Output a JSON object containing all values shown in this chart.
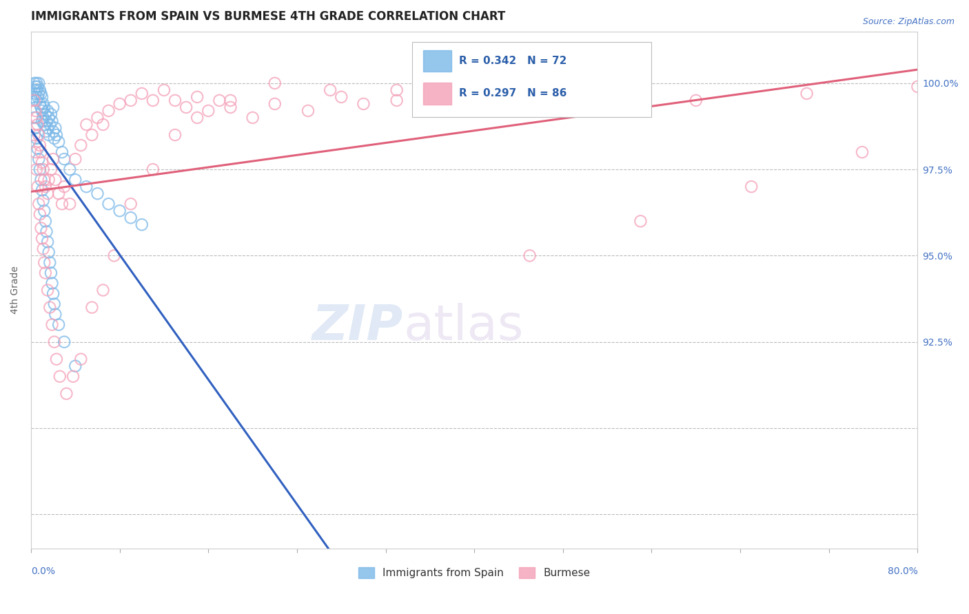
{
  "title": "IMMIGRANTS FROM SPAIN VS BURMESE 4TH GRADE CORRELATION CHART",
  "source_text": "Source: ZipAtlas.com",
  "ylabel": "4th Grade",
  "xlim": [
    0.0,
    80.0
  ],
  "ylim": [
    86.5,
    101.5
  ],
  "spain_color": "#7bb8e8",
  "burmese_color": "#f4a0b8",
  "spain_line_color": "#3060c0",
  "burmese_line_color": "#e0607a",
  "spain_R": 0.342,
  "spain_N": 72,
  "burmese_R": 0.297,
  "burmese_N": 86,
  "legend_R_color": "#2c5faa",
  "watermark_zip": "ZIP",
  "watermark_atlas": "atlas",
  "background_color": "#ffffff",
  "grid_color": "#bbbbbb",
  "right_ytick_vals": [
    92.5,
    95.0,
    97.5,
    100.0
  ],
  "right_ytick_labels": [
    "92.5%",
    "95.0%",
    "97.5%",
    "100.0%"
  ],
  "spain_scatter_x": [
    0.2,
    0.3,
    0.3,
    0.4,
    0.4,
    0.5,
    0.5,
    0.5,
    0.6,
    0.6,
    0.7,
    0.7,
    0.8,
    0.8,
    0.9,
    0.9,
    1.0,
    1.0,
    1.0,
    1.1,
    1.1,
    1.2,
    1.2,
    1.3,
    1.3,
    1.4,
    1.5,
    1.5,
    1.6,
    1.6,
    1.7,
    1.8,
    1.9,
    2.0,
    2.0,
    2.1,
    2.2,
    2.3,
    2.5,
    2.8,
    3.0,
    3.5,
    4.0,
    5.0,
    6.0,
    7.0,
    8.0,
    9.0,
    10.0,
    0.3,
    0.4,
    0.5,
    0.6,
    0.7,
    0.8,
    0.9,
    1.0,
    1.1,
    1.2,
    1.3,
    1.4,
    1.5,
    1.6,
    1.7,
    1.8,
    1.9,
    2.0,
    2.1,
    2.2,
    2.5,
    3.0,
    4.0
  ],
  "spain_scatter_y": [
    99.6,
    100.0,
    99.8,
    99.9,
    99.7,
    100.0,
    99.8,
    99.5,
    99.9,
    99.6,
    100.0,
    99.7,
    99.8,
    99.4,
    99.7,
    99.3,
    99.6,
    99.2,
    98.9,
    99.4,
    99.0,
    99.3,
    98.8,
    99.1,
    98.6,
    98.9,
    98.7,
    99.2,
    98.5,
    99.0,
    98.8,
    99.1,
    98.9,
    98.6,
    99.3,
    98.4,
    98.7,
    98.5,
    98.3,
    98.0,
    97.8,
    97.5,
    97.2,
    97.0,
    96.8,
    96.5,
    96.3,
    96.1,
    95.9,
    99.0,
    98.7,
    98.4,
    98.1,
    97.8,
    97.5,
    97.2,
    96.9,
    96.6,
    96.3,
    96.0,
    95.7,
    95.4,
    95.1,
    94.8,
    94.5,
    94.2,
    93.9,
    93.6,
    93.3,
    93.0,
    92.5,
    91.8
  ],
  "burmese_scatter_x": [
    0.3,
    0.4,
    0.5,
    0.6,
    0.7,
    0.8,
    0.9,
    1.0,
    1.1,
    1.2,
    1.3,
    1.5,
    1.6,
    1.8,
    2.0,
    2.2,
    2.5,
    2.8,
    3.0,
    3.5,
    4.0,
    4.5,
    5.0,
    5.5,
    6.0,
    6.5,
    7.0,
    8.0,
    9.0,
    10.0,
    11.0,
    12.0,
    13.0,
    14.0,
    15.0,
    16.0,
    17.0,
    18.0,
    20.0,
    22.0,
    25.0,
    28.0,
    30.0,
    33.0,
    36.0,
    40.0,
    0.3,
    0.4,
    0.5,
    0.6,
    0.7,
    0.8,
    0.9,
    1.0,
    1.1,
    1.2,
    1.3,
    1.5,
    1.7,
    1.9,
    2.1,
    2.3,
    2.6,
    3.2,
    3.8,
    4.5,
    5.5,
    6.5,
    7.5,
    9.0,
    11.0,
    13.0,
    15.0,
    18.0,
    22.0,
    27.0,
    33.0,
    40.0,
    50.0,
    60.0,
    70.0,
    80.0,
    45.0,
    55.0,
    65.0,
    75.0
  ],
  "burmese_scatter_y": [
    99.5,
    99.2,
    99.0,
    98.8,
    98.5,
    98.2,
    98.0,
    97.7,
    97.5,
    97.2,
    97.0,
    96.8,
    97.2,
    97.5,
    97.8,
    97.2,
    96.8,
    96.5,
    97.0,
    96.5,
    97.8,
    98.2,
    98.8,
    98.5,
    99.0,
    98.8,
    99.2,
    99.4,
    99.5,
    99.7,
    99.5,
    99.8,
    99.5,
    99.3,
    99.6,
    99.2,
    99.5,
    99.3,
    99.0,
    99.4,
    99.2,
    99.6,
    99.4,
    99.8,
    99.5,
    99.7,
    98.5,
    98.0,
    97.5,
    97.0,
    96.5,
    96.2,
    95.8,
    95.5,
    95.2,
    94.8,
    94.5,
    94.0,
    93.5,
    93.0,
    92.5,
    92.0,
    91.5,
    91.0,
    91.5,
    92.0,
    93.5,
    94.0,
    95.0,
    96.5,
    97.5,
    98.5,
    99.0,
    99.5,
    100.0,
    99.8,
    99.5,
    99.7,
    99.8,
    99.5,
    99.7,
    99.9,
    95.0,
    96.0,
    97.0,
    98.0
  ]
}
